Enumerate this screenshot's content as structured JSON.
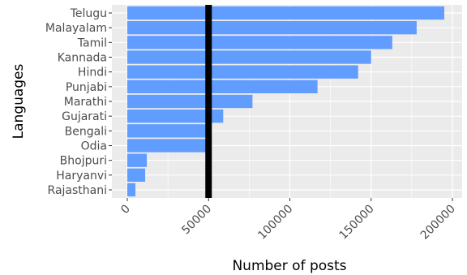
{
  "chart_data": {
    "type": "bar",
    "orientation": "horizontal",
    "categories": [
      "Telugu",
      "Malayalam",
      "Tamil",
      "Kannada",
      "Hindi",
      "Punjabi",
      "Marathi",
      "Gujarati",
      "Bengali",
      "Odia",
      "Bhojpuri",
      "Haryanvi",
      "Rajasthani"
    ],
    "values": [
      195000,
      178000,
      163000,
      150000,
      142000,
      117000,
      77000,
      59000,
      49000,
      49000,
      12000,
      11000,
      5000
    ],
    "xlabel": "Number of posts",
    "ylabel": "Languages",
    "xlim": [
      0,
      200000
    ],
    "x_ticks": [
      0,
      50000,
      100000,
      150000,
      200000
    ],
    "x_tick_labels": [
      "0",
      "50000",
      "100000",
      "150000",
      "200000"
    ],
    "reference_line": {
      "orientation": "vertical",
      "value": 50000,
      "color": "#000000"
    },
    "grid": true,
    "legend": "none",
    "colors": {
      "bar": "#619cff",
      "panel": "#ebebeb",
      "grid": "#ffffff"
    }
  }
}
